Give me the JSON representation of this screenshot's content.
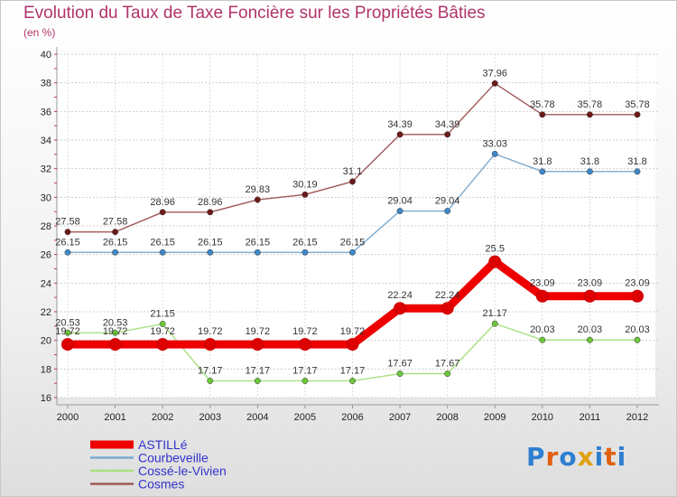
{
  "header": {
    "title": "Evolution du Taux de Taxe Foncière sur les Propriétés Bâties",
    "subtitle": "(en %)"
  },
  "logo": {
    "text": "Proxiti",
    "colors": [
      "#2e7fd0",
      "#e06010",
      "#2e7fd0",
      "#e0a010",
      "#2e7fd0",
      "#e06010",
      "#2e7fd0"
    ]
  },
  "chart_data": {
    "type": "line",
    "x": [
      "2000",
      "2001",
      "2002",
      "2003",
      "2004",
      "2005",
      "2006",
      "2007",
      "2008",
      "2009",
      "2010",
      "2011",
      "2012"
    ],
    "ylim": [
      16,
      40
    ],
    "yticks": [
      16,
      18,
      20,
      22,
      24,
      26,
      28,
      30,
      32,
      34,
      36,
      38,
      40
    ],
    "grid": true,
    "legend_position": "bottom-left",
    "series": [
      {
        "name": "ASTILLé",
        "color": "#ee0000",
        "marker_color": "#dd0000",
        "thick": true,
        "values": [
          19.72,
          19.72,
          19.72,
          19.72,
          19.72,
          19.72,
          19.72,
          22.24,
          22.24,
          25.5,
          23.09,
          23.09,
          23.09
        ],
        "labels": [
          "19.72",
          "19.72",
          "19.72",
          "19.72",
          "19.72",
          "19.72",
          "19.72",
          "22.24",
          "22.24",
          "25.5",
          "23.09",
          "23.09",
          "23.09"
        ]
      },
      {
        "name": "Courbeveille",
        "color": "#7aaad0",
        "marker_color": "#3f88c8",
        "thick": false,
        "values": [
          26.15,
          26.15,
          26.15,
          26.15,
          26.15,
          26.15,
          26.15,
          29.04,
          29.04,
          33.03,
          31.8,
          31.8,
          31.8
        ],
        "labels": [
          "26.15",
          "26.15",
          "26.15",
          "26.15",
          "26.15",
          "26.15",
          "26.15",
          "29.04",
          "29.04",
          "33.03",
          "31.8",
          "31.8",
          "31.8"
        ]
      },
      {
        "name": "Cossé-le-Vivien",
        "color": "#a8e080",
        "marker_color": "#6cc63a",
        "thick": false,
        "values": [
          20.53,
          20.53,
          21.15,
          17.17,
          17.17,
          17.17,
          17.17,
          17.67,
          17.67,
          21.17,
          20.03,
          20.03,
          20.03
        ],
        "labels": [
          "20.53",
          "20.53",
          "21.15",
          "17.17",
          "17.17",
          "17.17",
          "17.17",
          "17.67",
          "17.67",
          "21.17",
          "20.03",
          "20.03",
          "20.03"
        ]
      },
      {
        "name": "Cosmes",
        "color": "#a05858",
        "marker_color": "#6e1a1a",
        "thick": false,
        "values": [
          27.58,
          27.58,
          28.96,
          28.96,
          29.83,
          30.19,
          31.1,
          34.39,
          34.39,
          37.96,
          35.78,
          35.78,
          35.78
        ],
        "labels": [
          "27.58",
          "27.58",
          "28.96",
          "28.96",
          "29.83",
          "30.19",
          "31.1",
          "34.39",
          "34.39",
          "37.96",
          "35.78",
          "35.78",
          "35.78"
        ]
      }
    ]
  }
}
